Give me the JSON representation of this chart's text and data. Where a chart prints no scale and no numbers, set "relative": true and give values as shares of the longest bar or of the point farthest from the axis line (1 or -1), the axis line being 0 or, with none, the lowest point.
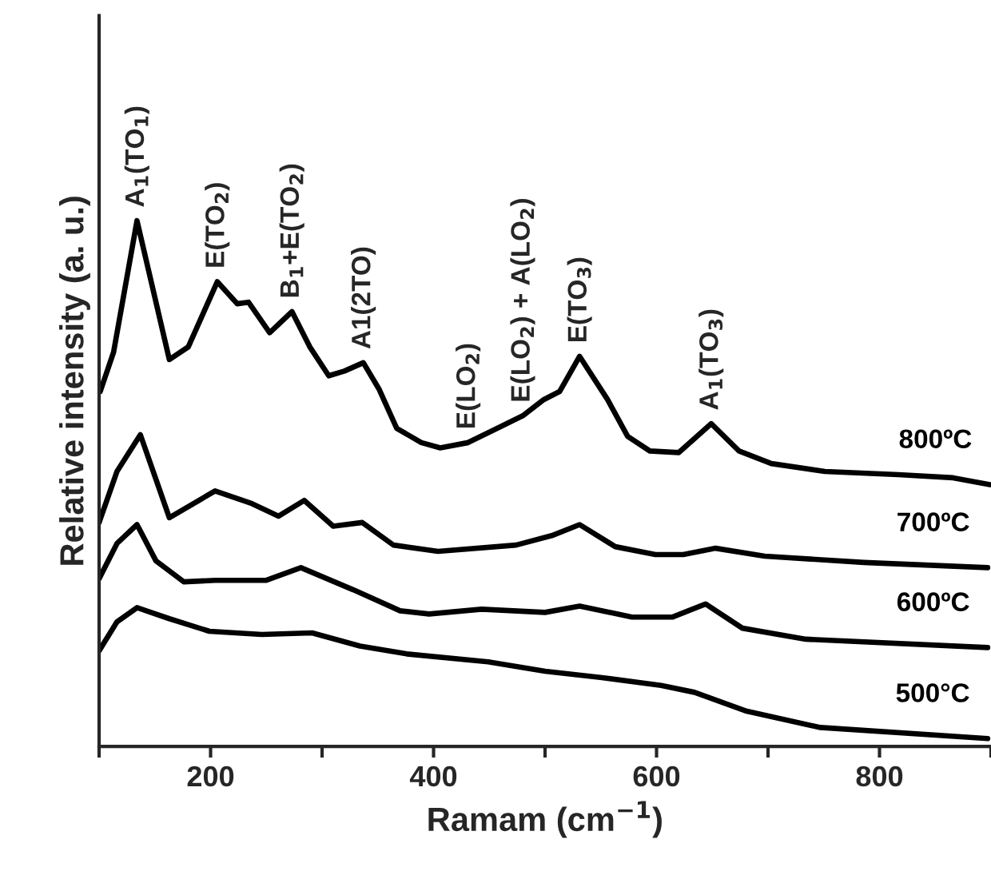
{
  "chart_data": {
    "type": "line",
    "relative": true,
    "xlabel": "Ramam (cm$^{−1}$)",
    "ylabel": "Relative intensity (a. u.)",
    "xlim": [
      100,
      900
    ],
    "xticks": [
      {
        "value": 100,
        "label": null
      },
      200,
      {
        "value": 300,
        "label": null
      },
      400,
      {
        "value": 500,
        "label": null
      },
      600,
      {
        "value": 700,
        "label": null
      },
      800,
      {
        "value": 900,
        "label": null
      }
    ],
    "grid": false,
    "legend": false,
    "marker": "none",
    "line_style": "solid",
    "tick_labels": "x",
    "series": [
      {
        "name": "800ºC",
        "color": "#000000",
        "x": [
          101,
          113,
          134,
          163,
          180,
          206,
          224,
          234,
          253,
          273,
          289,
          306,
          320,
          337,
          351,
          367,
          389,
          406,
          431,
          460,
          480,
          499,
          513,
          531,
          556,
          574,
          594,
          620,
          649,
          674,
          703,
          751,
          817,
          866,
          899
        ],
        "values": [
          0.675,
          0.75,
          1.0,
          0.736,
          0.76,
          0.884,
          0.842,
          0.845,
          0.787,
          0.827,
          0.76,
          0.705,
          0.714,
          0.73,
          0.68,
          0.605,
          0.578,
          0.568,
          0.578,
          0.608,
          0.629,
          0.66,
          0.675,
          0.742,
          0.66,
          0.59,
          0.562,
          0.559,
          0.614,
          0.562,
          0.538,
          0.523,
          0.517,
          0.511,
          0.498
        ]
      },
      {
        "name": "700ºC",
        "color": "#000000",
        "x": [
          100,
          116,
          137,
          151,
          163,
          204,
          237,
          261,
          284,
          310,
          336,
          364,
          404,
          474,
          506,
          531,
          563,
          599,
          624,
          653,
          697,
          786,
          897
        ],
        "values": [
          0.426,
          0.523,
          0.593,
          0.508,
          0.435,
          0.486,
          0.462,
          0.438,
          0.468,
          0.419,
          0.426,
          0.383,
          0.371,
          0.383,
          0.401,
          0.422,
          0.38,
          0.365,
          0.365,
          0.377,
          0.362,
          0.35,
          0.34
        ]
      },
      {
        "name": "600ºC",
        "color": "#000000",
        "x": [
          100,
          116,
          134,
          151,
          176,
          204,
          250,
          281,
          328,
          370,
          396,
          443,
          500,
          531,
          578,
          614,
          644,
          677,
          734,
          897
        ],
        "values": [
          0.319,
          0.386,
          0.422,
          0.353,
          0.313,
          0.316,
          0.316,
          0.34,
          0.298,
          0.258,
          0.252,
          0.261,
          0.255,
          0.267,
          0.246,
          0.246,
          0.271,
          0.225,
          0.204,
          0.188
        ]
      },
      {
        "name": "500°C",
        "color": "#000000",
        "x": [
          100,
          116,
          134,
          163,
          199,
          246,
          291,
          334,
          376,
          449,
          500,
          551,
          604,
          634,
          681,
          747,
          897
        ],
        "values": [
          0.182,
          0.237,
          0.264,
          0.243,
          0.219,
          0.213,
          0.216,
          0.191,
          0.176,
          0.161,
          0.143,
          0.131,
          0.116,
          0.103,
          0.067,
          0.036,
          0.015
        ]
      }
    ],
    "annotations": [
      {
        "text": "A$_{1}$(TO$_{1}$)",
        "x": 134,
        "y": 1.0
      },
      {
        "text": "E(TO$_{2}$)",
        "x": 206,
        "y": 0.884
      },
      {
        "text": "B$_{1}$+E(TO$_{2}$)",
        "x": 273,
        "y": 0.827
      },
      {
        "text": "A1(2TO)",
        "x": 337,
        "y": 0.73
      },
      {
        "text": "E(LO$_{2}$)",
        "x": 431,
        "y": 0.578
      },
      {
        "text": "E(LO$_{2}$) + A(LO$_{2}$)",
        "x": 480,
        "y": 0.629
      },
      {
        "text": "E(TO$_{3}$)",
        "x": 531,
        "y": 0.742
      },
      {
        "text": "A$_{1}$(TO$_{3}$)",
        "x": 649,
        "y": 0.614
      }
    ]
  }
}
